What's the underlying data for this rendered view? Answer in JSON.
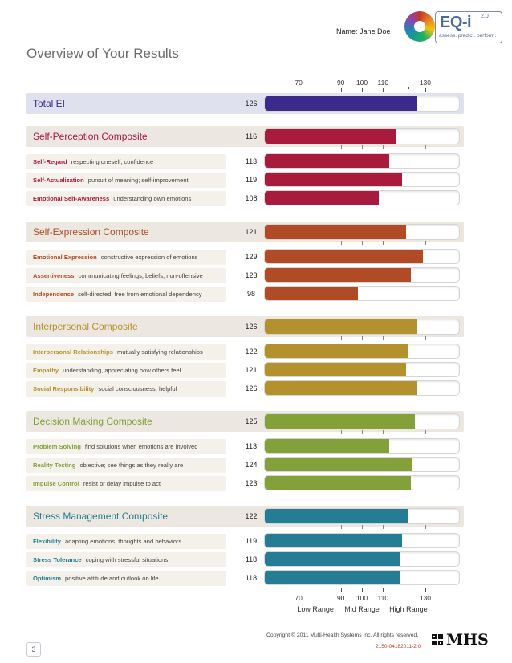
{
  "header": {
    "name_line": "Name: Jane Doe",
    "logo": {
      "title": "EQ-i",
      "version": "2.0",
      "tagline": "assess. predict. perform."
    },
    "page_title": "Overview of Your Results"
  },
  "scale": {
    "min": 54,
    "max": 146,
    "ticks": [
      70,
      90,
      100,
      110,
      130
    ],
    "minor": [
      85,
      122
    ]
  },
  "range_labels": [
    "Low Range",
    "Mid Range",
    "High Range"
  ],
  "colors": {
    "total": "#3b2a8c",
    "self_perception": "#a81b3c",
    "self_expression": "#b04b26",
    "interpersonal": "#b3922e",
    "decision_making": "#84a03a",
    "stress_management": "#247d94",
    "total_band": "#dfe2ee",
    "composite_band": "#ece7e0",
    "sub_band": "#f4f0ea"
  },
  "chart_data": {
    "type": "bar",
    "orientation": "horizontal",
    "xlim": [
      54,
      146
    ],
    "x_ticks": [
      70,
      90,
      100,
      110,
      130
    ],
    "groups": [
      {
        "key": "total",
        "title": "Total EI",
        "score": 126,
        "items": []
      },
      {
        "key": "self_perception",
        "title": "Self-Perception Composite",
        "score": 116,
        "items": [
          {
            "name": "Self-Regard",
            "desc": "respecting oneself; confidence",
            "score": 113
          },
          {
            "name": "Self-Actualization",
            "desc": "pursuit of meaning; self-improvement",
            "score": 119
          },
          {
            "name": "Emotional Self-Awareness",
            "desc": "understanding own emotions",
            "score": 108
          }
        ]
      },
      {
        "key": "self_expression",
        "title": "Self-Expression Composite",
        "score": 121,
        "items": [
          {
            "name": "Emotional Expression",
            "desc": "constructive expression of emotions",
            "score": 129
          },
          {
            "name": "Assertiveness",
            "desc": "communicating feelings, beliefs; non-offensive",
            "score": 123
          },
          {
            "name": "Independence",
            "desc": "self-directed; free from emotional dependency",
            "score": 98
          }
        ]
      },
      {
        "key": "interpersonal",
        "title": "Interpersonal Composite",
        "score": 126,
        "items": [
          {
            "name": "Interpersonal Relationships",
            "desc": "mutually satisfying relationships",
            "score": 122
          },
          {
            "name": "Empathy",
            "desc": "understanding, appreciating how others feel",
            "score": 121
          },
          {
            "name": "Social Responsibility",
            "desc": "social consciousness; helpful",
            "score": 126
          }
        ]
      },
      {
        "key": "decision_making",
        "title": "Decision Making Composite",
        "score": 125,
        "items": [
          {
            "name": "Problem Solving",
            "desc": "find solutions when emotions are involved",
            "score": 113
          },
          {
            "name": "Reality Testing",
            "desc": "objective; see things as they really are",
            "score": 124
          },
          {
            "name": "Impulse Control",
            "desc": "resist or delay impulse to act",
            "score": 123
          }
        ]
      },
      {
        "key": "stress_management",
        "title": "Stress Management Composite",
        "score": 122,
        "items": [
          {
            "name": "Flexibility",
            "desc": "adapting emotions, thoughts and behaviors",
            "score": 119
          },
          {
            "name": "Stress Tolerance",
            "desc": "coping with stressful situations",
            "score": 118
          },
          {
            "name": "Optimism",
            "desc": "positive attitude and outlook on life",
            "score": 118
          }
        ]
      }
    ]
  },
  "footer": {
    "copyright": "Copyright © 2011 Multi-Health Systems Inc. All rights reserved.",
    "code": "2150-04182011-2.0",
    "brand": "MHS",
    "page_number": "3"
  }
}
